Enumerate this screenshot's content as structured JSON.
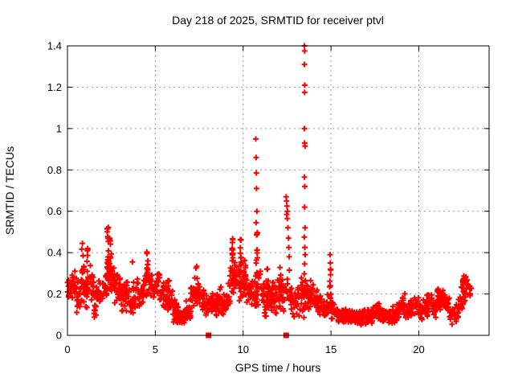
{
  "page": {
    "background": "#ffffff",
    "border_color": "#000000",
    "grid_color": "#9a9a9a",
    "accent_color": "#ff0000"
  },
  "chart_data": {
    "type": "scatter",
    "title": "Day 218 of 2025, SRMTID for receiver ptvl",
    "xlabel": "GPS time / hours",
    "ylabel": "SRMTID / TECUs",
    "xlim": [
      0,
      24
    ],
    "ylim": [
      0,
      1.4
    ],
    "xticks": {
      "values": [
        0,
        5,
        10,
        15,
        20
      ],
      "labels": [
        "0",
        "5",
        "10",
        "15",
        "20"
      ]
    },
    "yticks": {
      "values": [
        0,
        0.2,
        0.4,
        0.6,
        0.8,
        1.0,
        1.2,
        1.4
      ],
      "labels": [
        "0",
        "0.2",
        "0.4",
        "0.6",
        "0.8",
        "1",
        "1.2",
        "1.4"
      ]
    },
    "grid": true,
    "legend_position": "none",
    "seed": 42,
    "series": [
      {
        "name": "srmtid",
        "marker": "plus",
        "color": "#ff0000",
        "marker_size": 7,
        "marker_stroke": 2,
        "envelope_bins": {
          "bin_width": 0.25,
          "bins": [
            [
              0.0,
              0.17,
              0.3,
              20
            ],
            [
              0.25,
              0.15,
              0.32,
              20
            ],
            [
              0.5,
              0.07,
              0.3,
              20
            ],
            [
              0.75,
              0.15,
              0.35,
              18
            ],
            [
              1.0,
              0.12,
              0.33,
              18
            ],
            [
              1.25,
              0.1,
              0.35,
              18
            ],
            [
              1.5,
              0.08,
              0.25,
              18
            ],
            [
              1.75,
              0.1,
              0.28,
              18
            ],
            [
              2.0,
              0.15,
              0.33,
              18
            ],
            [
              2.25,
              0.18,
              0.4,
              16
            ],
            [
              2.5,
              0.15,
              0.38,
              16
            ],
            [
              2.75,
              0.12,
              0.33,
              16
            ],
            [
              3.0,
              0.1,
              0.3,
              18
            ],
            [
              3.25,
              0.1,
              0.28,
              18
            ],
            [
              3.5,
              0.08,
              0.24,
              18
            ],
            [
              3.75,
              0.1,
              0.3,
              16
            ],
            [
              4.0,
              0.1,
              0.28,
              16
            ],
            [
              4.25,
              0.12,
              0.32,
              16
            ],
            [
              4.5,
              0.15,
              0.35,
              14
            ],
            [
              4.75,
              0.15,
              0.3,
              14
            ],
            [
              5.0,
              0.18,
              0.31,
              16
            ],
            [
              5.25,
              0.12,
              0.28,
              16
            ],
            [
              5.5,
              0.1,
              0.27,
              16
            ],
            [
              5.75,
              0.08,
              0.25,
              16
            ],
            [
              6.0,
              0.06,
              0.18,
              18
            ],
            [
              6.25,
              0.05,
              0.16,
              18
            ],
            [
              6.5,
              0.05,
              0.14,
              18
            ],
            [
              6.75,
              0.06,
              0.18,
              18
            ],
            [
              7.0,
              0.1,
              0.28,
              16
            ],
            [
              7.25,
              0.12,
              0.3,
              16
            ],
            [
              7.5,
              0.1,
              0.27,
              16
            ],
            [
              7.75,
              0.08,
              0.24,
              16
            ],
            [
              8.0,
              0.08,
              0.22,
              18
            ],
            [
              8.25,
              0.08,
              0.22,
              18
            ],
            [
              8.5,
              0.1,
              0.25,
              18
            ],
            [
              8.75,
              0.08,
              0.22,
              18
            ],
            [
              9.0,
              0.1,
              0.26,
              16
            ],
            [
              9.25,
              0.15,
              0.4,
              14
            ],
            [
              9.5,
              0.15,
              0.38,
              14
            ],
            [
              9.75,
              0.15,
              0.4,
              14
            ],
            [
              10.0,
              0.15,
              0.33,
              16
            ],
            [
              10.25,
              0.1,
              0.28,
              16
            ],
            [
              10.5,
              0.1,
              0.3,
              14
            ],
            [
              10.75,
              0.12,
              0.38,
              14
            ],
            [
              11.0,
              0.08,
              0.3,
              16
            ],
            [
              11.25,
              0.08,
              0.32,
              16
            ],
            [
              11.5,
              0.08,
              0.3,
              16
            ],
            [
              11.75,
              0.08,
              0.28,
              16
            ],
            [
              12.0,
              0.1,
              0.3,
              16
            ],
            [
              12.25,
              0.08,
              0.28,
              16
            ],
            [
              12.5,
              0.1,
              0.33,
              14
            ],
            [
              12.75,
              0.08,
              0.25,
              16
            ],
            [
              13.0,
              0.08,
              0.25,
              16
            ],
            [
              13.25,
              0.08,
              0.28,
              16
            ],
            [
              13.5,
              0.1,
              0.3,
              14
            ],
            [
              13.75,
              0.1,
              0.28,
              16
            ],
            [
              14.0,
              0.08,
              0.25,
              16
            ],
            [
              14.25,
              0.06,
              0.2,
              16
            ],
            [
              14.5,
              0.06,
              0.18,
              16
            ],
            [
              14.75,
              0.08,
              0.22,
              14
            ],
            [
              15.0,
              0.07,
              0.18,
              14
            ],
            [
              15.25,
              0.06,
              0.15,
              16
            ],
            [
              15.5,
              0.05,
              0.14,
              18
            ],
            [
              15.75,
              0.05,
              0.13,
              18
            ],
            [
              16.0,
              0.05,
              0.14,
              18
            ],
            [
              16.25,
              0.05,
              0.13,
              18
            ],
            [
              16.5,
              0.04,
              0.12,
              18
            ],
            [
              16.75,
              0.05,
              0.13,
              18
            ],
            [
              17.0,
              0.05,
              0.14,
              18
            ],
            [
              17.25,
              0.05,
              0.15,
              18
            ],
            [
              17.5,
              0.06,
              0.16,
              18
            ],
            [
              17.75,
              0.05,
              0.14,
              18
            ],
            [
              18.0,
              0.05,
              0.13,
              18
            ],
            [
              18.25,
              0.04,
              0.12,
              18
            ],
            [
              18.5,
              0.05,
              0.15,
              18
            ],
            [
              18.75,
              0.08,
              0.2,
              16
            ],
            [
              19.0,
              0.08,
              0.22,
              16
            ],
            [
              19.25,
              0.06,
              0.16,
              16
            ],
            [
              19.5,
              0.08,
              0.18,
              16
            ],
            [
              19.75,
              0.08,
              0.2,
              16
            ],
            [
              20.0,
              0.06,
              0.16,
              16
            ],
            [
              20.25,
              0.08,
              0.2,
              16
            ],
            [
              20.5,
              0.1,
              0.22,
              16
            ],
            [
              20.75,
              0.08,
              0.18,
              16
            ],
            [
              21.0,
              0.1,
              0.24,
              16
            ],
            [
              21.25,
              0.12,
              0.22,
              16
            ],
            [
              21.5,
              0.1,
              0.2,
              16
            ],
            [
              21.75,
              0.05,
              0.15,
              16
            ],
            [
              22.0,
              0.06,
              0.16,
              16
            ],
            [
              22.25,
              0.1,
              0.24,
              16
            ],
            [
              22.5,
              0.15,
              0.3,
              16
            ],
            [
              22.75,
              0.15,
              0.27,
              12
            ]
          ]
        },
        "columns": [
          [
            0.85,
            0.25,
            0.445,
            8
          ],
          [
            1.15,
            0.2,
            0.42,
            8
          ],
          [
            2.3,
            0.25,
            0.64,
            18
          ],
          [
            2.42,
            0.2,
            0.5,
            10
          ],
          [
            4.55,
            0.25,
            0.46,
            10
          ],
          [
            5.75,
            0.12,
            0.27,
            8
          ],
          [
            7.35,
            0.15,
            0.335,
            8
          ],
          [
            9.4,
            0.2,
            0.48,
            16
          ],
          [
            9.85,
            0.18,
            0.47,
            16
          ],
          [
            10.1,
            0.2,
            0.37,
            10
          ],
          [
            10.78,
            0.15,
            0.5,
            16
          ],
          [
            11.4,
            0.12,
            0.35,
            8
          ],
          [
            12.1,
            0.12,
            0.33,
            8
          ],
          [
            13.52,
            0.12,
            0.3,
            10
          ],
          [
            14.95,
            0.1,
            0.35,
            10
          ],
          [
            21.1,
            0.12,
            0.235,
            8
          ],
          [
            22.55,
            0.15,
            0.29,
            10
          ]
        ],
        "points": [
          [
            0.85,
            0.445
          ],
          [
            1.15,
            0.42
          ],
          [
            3.7,
            0.355
          ],
          [
            10.72,
            0.95
          ],
          [
            10.74,
            0.86
          ],
          [
            10.75,
            0.785
          ],
          [
            10.76,
            0.71
          ],
          [
            10.78,
            0.6
          ],
          [
            10.74,
            0.545
          ],
          [
            12.45,
            0.67
          ],
          [
            12.47,
            0.65
          ],
          [
            12.5,
            0.625
          ],
          [
            12.52,
            0.6
          ],
          [
            12.48,
            0.585
          ],
          [
            12.51,
            0.565
          ],
          [
            12.55,
            0.52
          ],
          [
            12.58,
            0.47
          ],
          [
            12.6,
            0.425
          ],
          [
            12.62,
            0.38
          ],
          [
            12.63,
            0.315
          ],
          [
            13.49,
            1.4
          ],
          [
            13.5,
            1.375
          ],
          [
            13.49,
            1.31
          ],
          [
            13.51,
            1.21
          ],
          [
            13.5,
            1.175
          ],
          [
            13.49,
            1.0
          ],
          [
            13.5,
            0.93
          ],
          [
            13.52,
            0.915
          ],
          [
            13.49,
            0.765
          ],
          [
            13.51,
            0.72
          ],
          [
            13.5,
            0.62
          ],
          [
            13.52,
            0.52
          ],
          [
            13.48,
            0.475
          ],
          [
            13.51,
            0.425
          ],
          [
            13.53,
            0.39
          ],
          [
            13.5,
            0.345
          ],
          [
            14.95,
            0.39
          ],
          [
            14.96,
            0.35
          ],
          [
            14.97,
            0.32
          ]
        ]
      },
      {
        "name": "flag-markers",
        "marker": "filled-square",
        "color": "#ff0000",
        "marker_size": 7,
        "points": [
          [
            8.03,
            0.0
          ],
          [
            12.45,
            0.0
          ]
        ]
      }
    ]
  }
}
